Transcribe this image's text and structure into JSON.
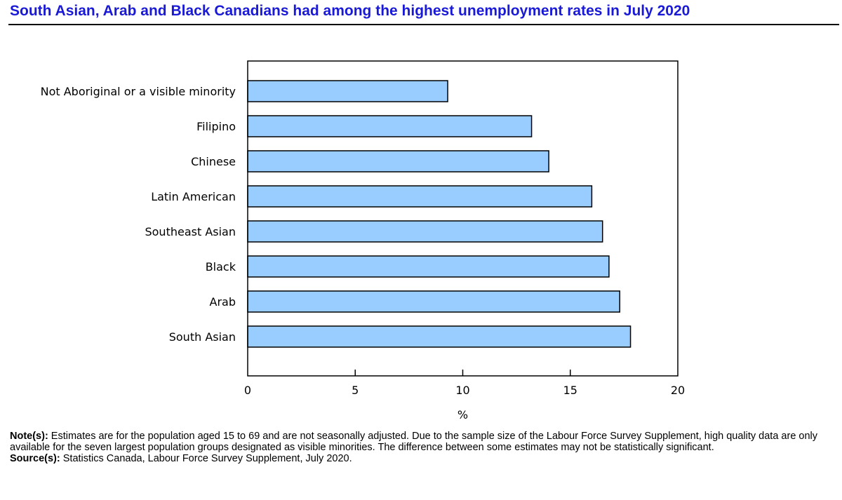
{
  "chart_data": {
    "type": "bar",
    "orientation": "horizontal",
    "title": "South Asian, Arab and Black Canadians had among the highest unemployment rates in July 2020",
    "categories": [
      "Not Aboriginal or a visible minority",
      "Filipino",
      "Chinese",
      "Latin American",
      "Southeast Asian",
      "Black",
      "Arab",
      "South Asian"
    ],
    "values": [
      9.3,
      13.2,
      14.0,
      16.0,
      16.5,
      16.8,
      17.3,
      17.8
    ],
    "xlabel": "%",
    "ylabel": "",
    "xlim": [
      0,
      20
    ],
    "xticks": [
      0,
      5,
      10,
      15,
      20
    ],
    "grid": false,
    "legend": "none",
    "bar_color": "#99ccff",
    "bar_edge_color": "#000000"
  },
  "notes": {
    "note_label": "Note(s):",
    "note_text": " Estimates are for the population aged 15 to 69 and are not seasonally adjusted. Due to the sample size of the Labour Force Survey Supplement, high quality data are only available for the seven largest population groups designated as visible minorities. The difference between some estimates may not be statistically significant.",
    "source_label": "Source(s):",
    "source_text": " Statistics Canada, Labour Force Survey Supplement, July 2020."
  },
  "colors": {
    "title": "#1a1ad6"
  }
}
